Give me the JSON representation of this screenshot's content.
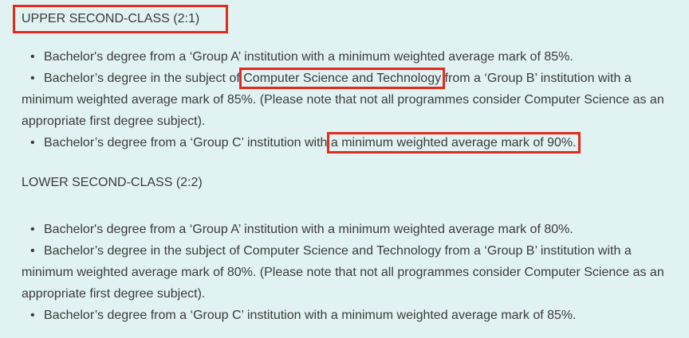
{
  "colors": {
    "background": "#e0f2f1",
    "text": "#3c3c3c",
    "annotation": "#e32b1e"
  },
  "bullet_glyph": "•",
  "sections": [
    {
      "id": "upper-second-class",
      "heading": {
        "text": "UPPER SECOND-CLASS (2:1)",
        "annotated": true
      },
      "bullets": [
        {
          "lines": [
            [
              {
                "t": "Bachelor's degree from a ‘Group A’ institution with a minimum weighted average mark of 85%."
              }
            ]
          ]
        },
        {
          "lines": [
            [
              {
                "t": "Bachelor’s degree in the subject of "
              },
              {
                "t": "Computer Science and Technology",
                "annotated": true
              },
              {
                "t": " from a ‘Group B’ institution with a"
              }
            ],
            [
              {
                "t": "minimum weighted average mark of 85%. (Please note that not all programmes consider Computer Science as an"
              }
            ],
            [
              {
                "t": "appropriate first degree subject)."
              }
            ]
          ]
        },
        {
          "lines": [
            [
              {
                "t": "Bachelor’s degree from a ‘Group C’ institution with "
              },
              {
                "t": "a minimum weighted average mark of 90%.",
                "annotated": true
              }
            ]
          ]
        }
      ]
    },
    {
      "id": "lower-second-class",
      "heading": {
        "text": "LOWER SECOND-CLASS (2:2)",
        "annotated": false
      },
      "bullets": [
        {
          "lines": [
            [
              {
                "t": "Bachelor's degree from a ‘Group A’ institution with a minimum weighted average mark of 80%."
              }
            ]
          ]
        },
        {
          "lines": [
            [
              {
                "t": "Bachelor’s degree in the subject of Computer Science and Technology from a ‘Group B’ institution with a"
              }
            ],
            [
              {
                "t": "minimum weighted average mark of 80%. (Please note that not all programmes consider Computer Science as an"
              }
            ],
            [
              {
                "t": "appropriate first degree subject)."
              }
            ]
          ]
        },
        {
          "lines": [
            [
              {
                "t": "Bachelor’s degree from a ‘Group C’ institution with a minimum weighted average mark of 85%."
              }
            ]
          ]
        }
      ]
    }
  ]
}
